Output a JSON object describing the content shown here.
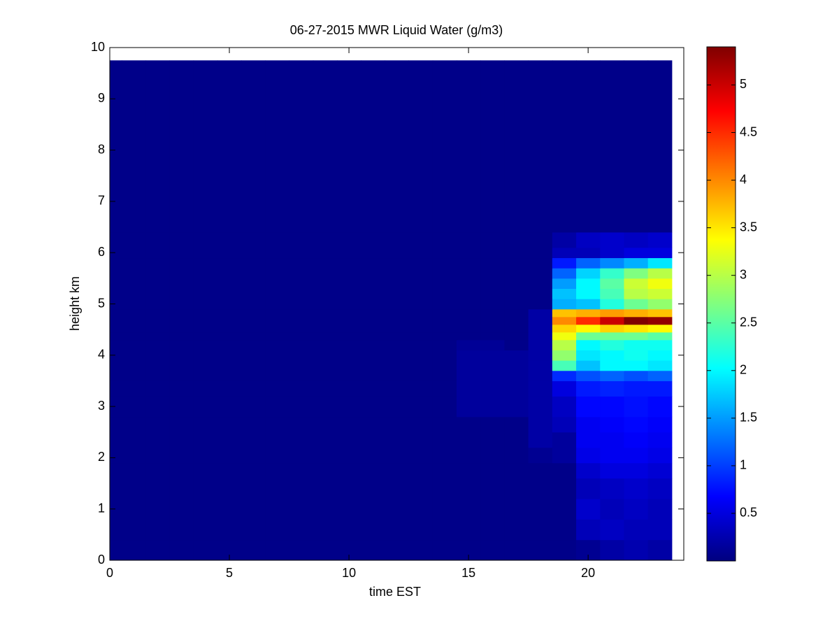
{
  "chart_data": {
    "type": "heatmap",
    "title": "06-27-2015 MWR Liquid Water (g/m3)",
    "xlabel": "time EST",
    "ylabel": "height km",
    "xlim": [
      0,
      24
    ],
    "xticks": [
      0,
      5,
      10,
      15,
      20
    ],
    "ylim": [
      0,
      10
    ],
    "yticks": [
      0,
      1,
      2,
      3,
      4,
      5,
      6,
      7,
      8,
      9,
      10
    ],
    "colormap": "jet",
    "clim": [
      0,
      5.4
    ],
    "cticks": [
      0.5,
      1,
      1.5,
      2,
      2.5,
      3,
      3.5,
      4,
      4.5,
      5
    ],
    "x_bins": [
      0,
      0.5,
      1.5,
      2.5,
      3.5,
      4.5,
      5.5,
      6.5,
      7.5,
      8.5,
      9.5,
      10.5,
      11.5,
      12.5,
      13.5,
      14.5,
      15.5,
      16.5,
      17.5,
      18.5,
      19.5,
      20.5,
      21.5,
      22.5,
      23.5
    ],
    "y_bins": [
      0,
      0.4,
      0.8,
      1.2,
      1.6,
      1.9,
      2.2,
      2.5,
      2.8,
      3.2,
      3.5,
      3.7,
      3.9,
      4.1,
      4.3,
      4.45,
      4.6,
      4.75,
      4.9,
      5.1,
      5.3,
      5.5,
      5.7,
      5.9,
      6.1,
      6.4,
      9.75
    ],
    "z": [
      [
        0.05,
        0.05,
        0.05,
        0.05,
        0.05,
        0.05,
        0.05,
        0.05,
        0.05,
        0.05,
        0.05,
        0.05,
        0.05,
        0.05,
        0.05,
        0.05,
        0.05,
        0.05,
        0.05,
        0.05,
        0.1,
        0.2,
        0.25,
        0.2
      ],
      [
        0.05,
        0.05,
        0.05,
        0.05,
        0.05,
        0.05,
        0.05,
        0.05,
        0.05,
        0.05,
        0.05,
        0.05,
        0.05,
        0.05,
        0.05,
        0.05,
        0.05,
        0.05,
        0.05,
        0.05,
        0.3,
        0.35,
        0.3,
        0.3
      ],
      [
        0.05,
        0.05,
        0.05,
        0.05,
        0.05,
        0.05,
        0.05,
        0.05,
        0.05,
        0.05,
        0.05,
        0.05,
        0.05,
        0.05,
        0.05,
        0.05,
        0.05,
        0.05,
        0.05,
        0.05,
        0.4,
        0.3,
        0.35,
        0.3
      ],
      [
        0.05,
        0.05,
        0.05,
        0.05,
        0.05,
        0.05,
        0.05,
        0.05,
        0.05,
        0.05,
        0.05,
        0.05,
        0.05,
        0.05,
        0.05,
        0.05,
        0.05,
        0.05,
        0.05,
        0.05,
        0.3,
        0.35,
        0.4,
        0.35
      ],
      [
        0.05,
        0.05,
        0.05,
        0.05,
        0.05,
        0.05,
        0.05,
        0.05,
        0.05,
        0.05,
        0.05,
        0.05,
        0.05,
        0.05,
        0.05,
        0.05,
        0.05,
        0.05,
        0.05,
        0.05,
        0.4,
        0.5,
        0.5,
        0.45
      ],
      [
        0.05,
        0.05,
        0.05,
        0.05,
        0.05,
        0.05,
        0.05,
        0.05,
        0.05,
        0.05,
        0.05,
        0.05,
        0.05,
        0.05,
        0.05,
        0.05,
        0.05,
        0.05,
        0.1,
        0.15,
        0.55,
        0.6,
        0.6,
        0.55
      ],
      [
        0.05,
        0.05,
        0.05,
        0.05,
        0.05,
        0.05,
        0.05,
        0.05,
        0.05,
        0.05,
        0.05,
        0.05,
        0.05,
        0.05,
        0.05,
        0.05,
        0.05,
        0.05,
        0.2,
        0.15,
        0.6,
        0.6,
        0.65,
        0.6
      ],
      [
        0.05,
        0.05,
        0.05,
        0.05,
        0.05,
        0.05,
        0.05,
        0.05,
        0.05,
        0.05,
        0.05,
        0.05,
        0.05,
        0.05,
        0.05,
        0.05,
        0.05,
        0.05,
        0.2,
        0.3,
        0.6,
        0.65,
        0.7,
        0.65
      ],
      [
        0.05,
        0.05,
        0.05,
        0.05,
        0.05,
        0.05,
        0.05,
        0.05,
        0.05,
        0.05,
        0.05,
        0.05,
        0.05,
        0.05,
        0.05,
        0.15,
        0.15,
        0.15,
        0.2,
        0.35,
        0.7,
        0.7,
        0.75,
        0.7
      ],
      [
        0.05,
        0.05,
        0.05,
        0.05,
        0.05,
        0.05,
        0.05,
        0.05,
        0.05,
        0.05,
        0.05,
        0.05,
        0.05,
        0.05,
        0.05,
        0.15,
        0.15,
        0.15,
        0.2,
        0.5,
        0.8,
        0.85,
        0.8,
        0.8
      ],
      [
        0.05,
        0.05,
        0.05,
        0.05,
        0.05,
        0.05,
        0.05,
        0.05,
        0.05,
        0.05,
        0.05,
        0.05,
        0.05,
        0.05,
        0.05,
        0.15,
        0.15,
        0.15,
        0.2,
        0.9,
        1.1,
        1.2,
        1.1,
        1.2
      ],
      [
        0.05,
        0.05,
        0.05,
        0.05,
        0.05,
        0.05,
        0.05,
        0.05,
        0.05,
        0.05,
        0.05,
        0.05,
        0.05,
        0.05,
        0.05,
        0.15,
        0.15,
        0.15,
        0.2,
        2.4,
        1.7,
        2.0,
        2.0,
        1.9
      ],
      [
        0.05,
        0.05,
        0.05,
        0.05,
        0.05,
        0.05,
        0.05,
        0.05,
        0.05,
        0.05,
        0.05,
        0.05,
        0.05,
        0.05,
        0.05,
        0.15,
        0.15,
        0.15,
        0.2,
        2.8,
        1.9,
        2.0,
        2.1,
        2.0
      ],
      [
        0.05,
        0.05,
        0.05,
        0.05,
        0.05,
        0.05,
        0.05,
        0.05,
        0.05,
        0.05,
        0.05,
        0.05,
        0.05,
        0.05,
        0.05,
        0.12,
        0.12,
        0.05,
        0.2,
        3.0,
        2.0,
        2.2,
        2.1,
        2.1
      ],
      [
        0.05,
        0.05,
        0.05,
        0.05,
        0.05,
        0.05,
        0.05,
        0.05,
        0.05,
        0.05,
        0.05,
        0.05,
        0.05,
        0.05,
        0.05,
        0.05,
        0.05,
        0.05,
        0.2,
        3.3,
        2.6,
        2.6,
        2.6,
        2.5
      ],
      [
        0.05,
        0.05,
        0.05,
        0.05,
        0.05,
        0.05,
        0.05,
        0.05,
        0.05,
        0.05,
        0.05,
        0.05,
        0.05,
        0.05,
        0.05,
        0.05,
        0.05,
        0.05,
        0.2,
        3.6,
        3.4,
        3.6,
        3.5,
        3.4
      ],
      [
        0.05,
        0.05,
        0.05,
        0.05,
        0.05,
        0.05,
        0.05,
        0.05,
        0.05,
        0.05,
        0.05,
        0.05,
        0.05,
        0.05,
        0.05,
        0.05,
        0.05,
        0.05,
        0.2,
        4.0,
        4.5,
        5.0,
        5.4,
        5.3
      ],
      [
        0.05,
        0.05,
        0.05,
        0.05,
        0.05,
        0.05,
        0.05,
        0.05,
        0.05,
        0.05,
        0.05,
        0.05,
        0.05,
        0.05,
        0.05,
        0.05,
        0.05,
        0.05,
        0.2,
        3.7,
        3.8,
        3.9,
        3.8,
        3.7
      ],
      [
        0.05,
        0.05,
        0.05,
        0.05,
        0.05,
        0.05,
        0.05,
        0.05,
        0.05,
        0.05,
        0.05,
        0.05,
        0.05,
        0.05,
        0.05,
        0.05,
        0.05,
        0.05,
        0.05,
        1.6,
        1.7,
        2.2,
        2.6,
        2.8
      ],
      [
        0.05,
        0.05,
        0.05,
        0.05,
        0.05,
        0.05,
        0.05,
        0.05,
        0.05,
        0.05,
        0.05,
        0.05,
        0.05,
        0.05,
        0.05,
        0.05,
        0.05,
        0.05,
        0.05,
        1.7,
        2.0,
        2.4,
        3.0,
        3.1
      ],
      [
        0.05,
        0.05,
        0.05,
        0.05,
        0.05,
        0.05,
        0.05,
        0.05,
        0.05,
        0.05,
        0.05,
        0.05,
        0.05,
        0.05,
        0.05,
        0.05,
        0.05,
        0.05,
        0.05,
        1.5,
        2.0,
        2.5,
        3.1,
        3.3
      ],
      [
        0.05,
        0.05,
        0.05,
        0.05,
        0.05,
        0.05,
        0.05,
        0.05,
        0.05,
        0.05,
        0.05,
        0.05,
        0.05,
        0.05,
        0.05,
        0.05,
        0.05,
        0.05,
        0.05,
        1.2,
        1.8,
        2.3,
        2.7,
        3.0
      ],
      [
        0.05,
        0.05,
        0.05,
        0.05,
        0.05,
        0.05,
        0.05,
        0.05,
        0.05,
        0.05,
        0.05,
        0.05,
        0.05,
        0.05,
        0.05,
        0.05,
        0.05,
        0.05,
        0.05,
        0.8,
        1.2,
        1.4,
        1.6,
        1.9
      ],
      [
        0.05,
        0.05,
        0.05,
        0.05,
        0.05,
        0.05,
        0.05,
        0.05,
        0.05,
        0.05,
        0.05,
        0.05,
        0.05,
        0.05,
        0.05,
        0.05,
        0.05,
        0.05,
        0.05,
        0.3,
        0.3,
        0.4,
        0.5,
        0.5
      ],
      [
        0.05,
        0.05,
        0.05,
        0.05,
        0.05,
        0.05,
        0.05,
        0.05,
        0.05,
        0.05,
        0.05,
        0.05,
        0.05,
        0.05,
        0.05,
        0.05,
        0.05,
        0.05,
        0.05,
        0.2,
        0.35,
        0.4,
        0.35,
        0.4
      ],
      [
        0.05,
        0.05,
        0.05,
        0.05,
        0.05,
        0.05,
        0.05,
        0.05,
        0.05,
        0.05,
        0.05,
        0.05,
        0.05,
        0.05,
        0.05,
        0.05,
        0.05,
        0.05,
        0.05,
        0.05,
        0.05,
        0.05,
        0.05,
        0.05
      ]
    ]
  }
}
